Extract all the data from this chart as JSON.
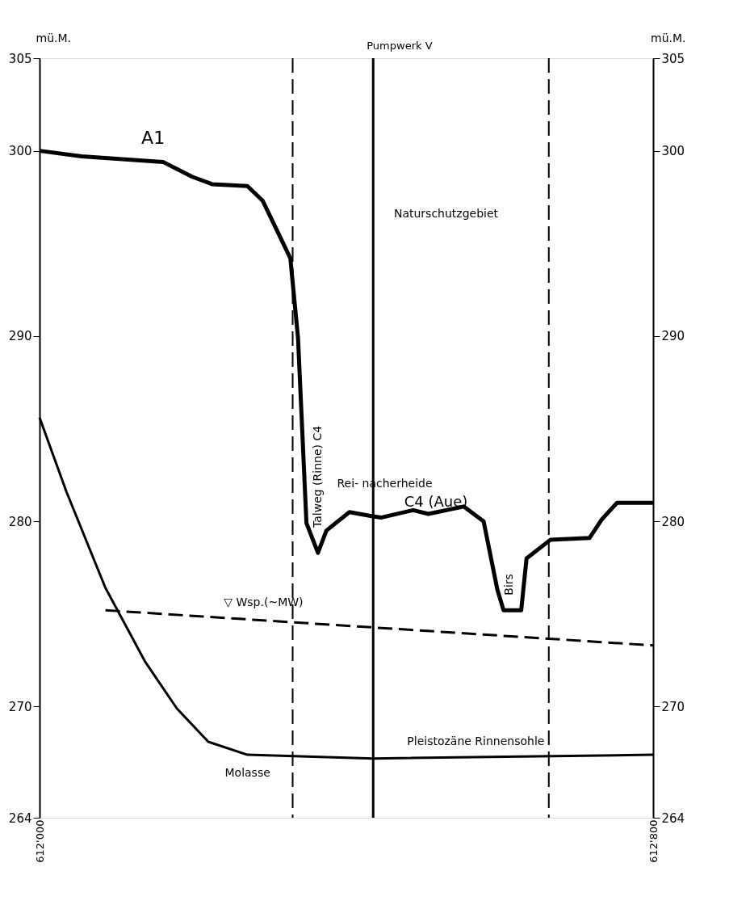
{
  "chart_data": {
    "type": "line",
    "ylabel": "mü.M.",
    "y2label": "mü.M.",
    "xlim": [
      612000,
      612800
    ],
    "xticks": [
      {
        "value": 612000,
        "label": "612'000"
      },
      {
        "value": 612800,
        "label": "612'800"
      }
    ],
    "ylim": [
      264,
      305
    ],
    "yticks": [
      264,
      270,
      280,
      290,
      300,
      305
    ],
    "y2lim": [
      264,
      305
    ],
    "y2ticks": [
      264,
      270,
      280,
      290,
      300,
      305
    ],
    "grid": false,
    "marker": "none",
    "series": [
      {
        "color": "#000000",
        "line_style": "solid",
        "x": [
          612000,
          612055,
          612161,
          612199,
          612225,
          612271,
          612291,
          612327,
          612337,
          612348,
          612363,
          612374,
          612404,
          612430,
          612445,
          612487,
          612507,
          612553,
          612579,
          612597,
          612605,
          612628,
          612635,
          612666,
          612717,
          612733,
          612753,
          612800
        ],
        "values": [
          300.0,
          299.7,
          299.4,
          298.6,
          298.2,
          298.1,
          297.3,
          294.2,
          289.9,
          279.9,
          278.3,
          279.5,
          280.5,
          280.3,
          280.2,
          280.6,
          280.4,
          280.8,
          280.0,
          276.3,
          275.2,
          275.2,
          278.0,
          279.0,
          279.1,
          280.1,
          281.0,
          281.0
        ]
      },
      {
        "color": "#000000",
        "line_style": "dashed",
        "x": [
          612086,
          612800
        ],
        "values": [
          275.2,
          273.3
        ]
      },
      {
        "color": "#000000",
        "line_style": "solid",
        "x": [
          612000,
          612035,
          612086,
          612138,
          612179,
          612220,
          612271,
          612435,
          612800
        ],
        "values": [
          285.6,
          281.6,
          276.4,
          272.4,
          269.9,
          268.1,
          267.4,
          267.2,
          267.4
        ]
      }
    ],
    "ref_lines": [
      {
        "axis": "x",
        "value": 612330,
        "line_style": "dashed"
      },
      {
        "axis": "x",
        "value": 612664,
        "line_style": "dashed"
      },
      {
        "axis": "x",
        "value": 612435,
        "line_style": "solid",
        "label": "Pumpwerk V"
      }
    ],
    "annotations": [
      "A1",
      "Naturschutzgebiet",
      "Talweg (Rinne) C4",
      "Rei- nacherheide",
      "C4 (Aue)",
      "Birs",
      "▽ Wsp.(~MW)",
      "Pleistozäne Rinnensohle",
      "Molasse"
    ]
  }
}
